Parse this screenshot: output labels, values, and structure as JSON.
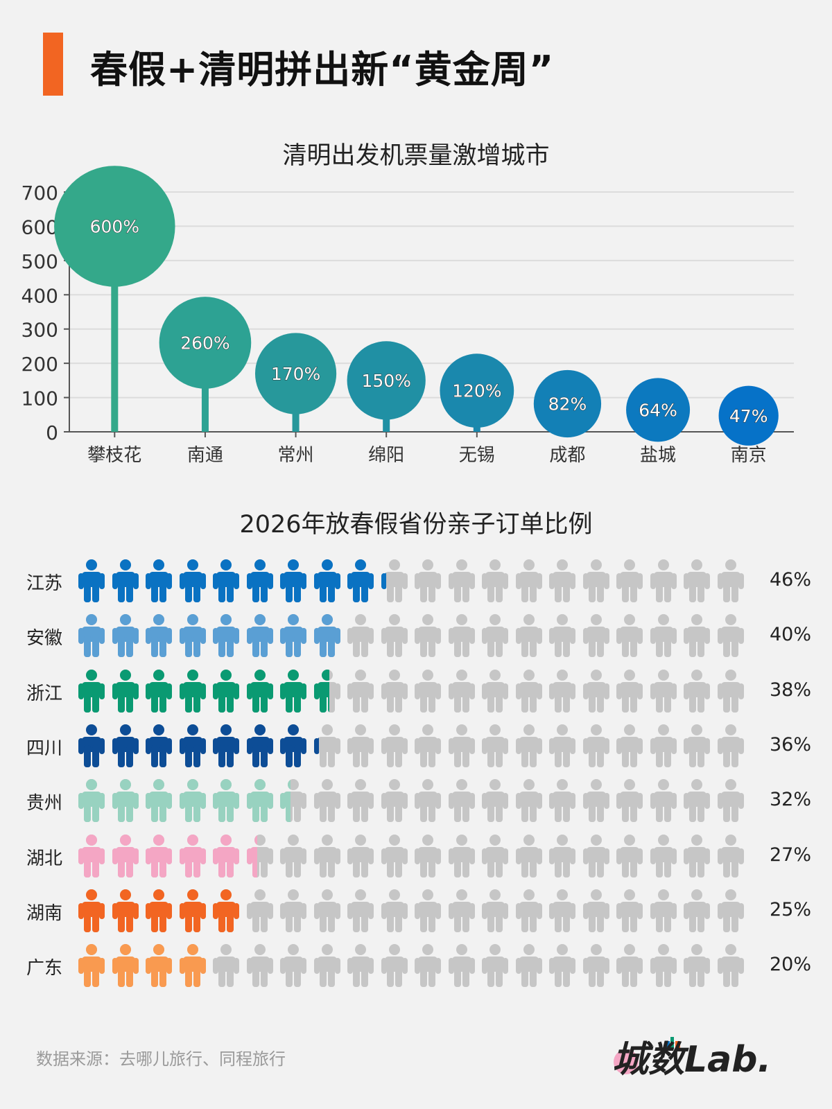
{
  "header": {
    "title": "春假+清明拼出新“黄金周”",
    "accent": "#f26522"
  },
  "chart_data": [
    {
      "type": "bubble-lollipop",
      "title": "清明出发机票量激增城市",
      "categories": [
        "攀枝花",
        "南通",
        "常州",
        "绵阳",
        "无锡",
        "成都",
        "盐城",
        "南京"
      ],
      "values": [
        600,
        260,
        170,
        150,
        120,
        82,
        64,
        47
      ],
      "labels": [
        "600%",
        "260%",
        "170%",
        "150%",
        "120%",
        "82%",
        "64%",
        "47%"
      ],
      "ylim": [
        0,
        700
      ],
      "yticks": [
        "0",
        "100",
        "200",
        "300",
        "400",
        "500",
        "600",
        "700"
      ],
      "grid": true,
      "colors": [
        "#34a88a",
        "#2da293",
        "#27989b",
        "#2090a4",
        "#1a88ad",
        "#1380b6",
        "#0c79bf",
        "#0672c8"
      ]
    },
    {
      "type": "pictogram",
      "title": "2026年放春假省份亲子订单比例",
      "icon": "person-icon",
      "icons_per_row": 20,
      "empty_color": "#c6c6c6",
      "rows": [
        {
          "label": "江苏",
          "value": 46,
          "pct": "46%",
          "color": "#0a72c2"
        },
        {
          "label": "安徽",
          "value": 40,
          "pct": "40%",
          "color": "#5a9fd4"
        },
        {
          "label": "浙江",
          "value": 38,
          "pct": "38%",
          "color": "#0a9a72"
        },
        {
          "label": "四川",
          "value": 36,
          "pct": "36%",
          "color": "#0d4d96"
        },
        {
          "label": "贵州",
          "value": 32,
          "pct": "32%",
          "color": "#98d2c0"
        },
        {
          "label": "湖北",
          "value": 27,
          "pct": "27%",
          "color": "#f4a6c4"
        },
        {
          "label": "湖南",
          "value": 25,
          "pct": "25%",
          "color": "#f26522"
        },
        {
          "label": "广东",
          "value": 20,
          "pct": "20%",
          "color": "#f99a50"
        }
      ]
    }
  ],
  "footer": {
    "source": "数据来源：去哪儿旅行、同程旅行",
    "logo": "城数Lab."
  }
}
